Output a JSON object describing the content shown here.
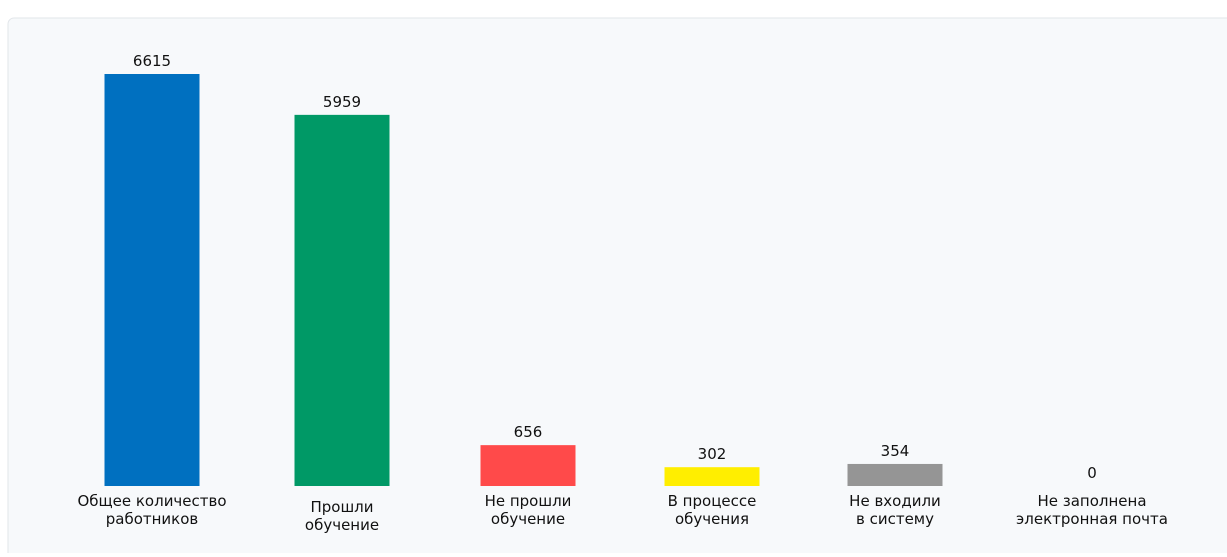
{
  "chart_data": {
    "type": "bar",
    "categories": [
      [
        "Общее количество",
        "работников"
      ],
      [
        "Прошли",
        "обучение"
      ],
      [
        "Не прошли",
        "обучение"
      ],
      [
        "В процессе",
        "обучения"
      ],
      [
        "Не входили",
        "в систему"
      ],
      [
        "Не заполнена",
        "электронная почта"
      ]
    ],
    "values": [
      6615,
      5959,
      656,
      302,
      354,
      0
    ],
    "colors": [
      "#0070c0",
      "#009966",
      "#ff4a4a",
      "#ffee00",
      "#959595",
      "#cccccc"
    ]
  }
}
